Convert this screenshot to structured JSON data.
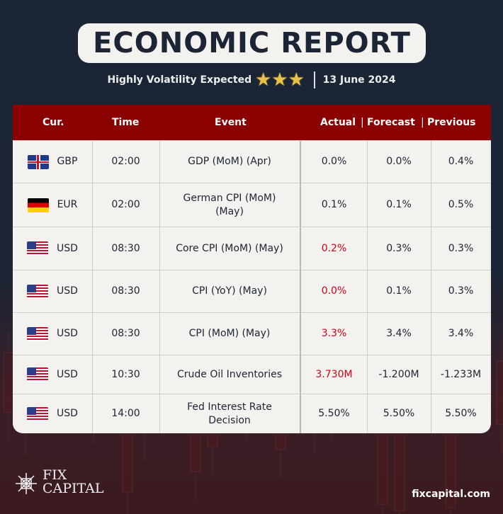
{
  "header": {
    "title": "ECONOMIC REPORT",
    "subtitle": "Highly Volatility Expected",
    "stars": 3,
    "date": "13 June 2024"
  },
  "columns": {
    "cur": "Cur.",
    "time": "Time",
    "event": "Event",
    "actual": "Actual",
    "forecast": "Forecast",
    "previous": "Previous"
  },
  "colors": {
    "header_bg": "#8b0000",
    "highlight": "#d0021b",
    "background": "#1b2535"
  },
  "rows": [
    {
      "flag": "gb",
      "cur": "GBP",
      "time": "02:00",
      "event": "GDP (MoM) (Apr)",
      "actual": "0.0%",
      "forecast": "0.0%",
      "previous": "0.4%",
      "actual_red": false
    },
    {
      "flag": "de",
      "cur": "EUR",
      "time": "02:00",
      "event": "German CPI (MoM) (May)",
      "actual": "0.1%",
      "forecast": "0.1%",
      "previous": "0.5%",
      "actual_red": false
    },
    {
      "flag": "us",
      "cur": "USD",
      "time": "08:30",
      "event": "Core CPI (MoM) (May)",
      "actual": "0.2%",
      "forecast": "0.3%",
      "previous": "0.3%",
      "actual_red": true
    },
    {
      "flag": "us",
      "cur": "USD",
      "time": "08:30",
      "event": "CPI (YoY) (May)",
      "actual": "0.0%",
      "forecast": "0.1%",
      "previous": "0.3%",
      "actual_red": true
    },
    {
      "flag": "us",
      "cur": "USD",
      "time": "08:30",
      "event": "CPI (MoM) (May)",
      "actual": "3.3%",
      "forecast": "3.4%",
      "previous": "3.4%",
      "actual_red": true
    },
    {
      "flag": "us",
      "cur": "USD",
      "time": "10:30",
      "event": "Crude Oil Inventories",
      "actual": "3.730M",
      "forecast": "-1.200M",
      "previous": "-1.233M",
      "actual_red": true
    },
    {
      "flag": "us",
      "cur": "USD",
      "time": "14:00",
      "event": "Fed Interest Rate Decision",
      "actual": "5.50%",
      "forecast": "5.50%",
      "previous": "5.50%",
      "actual_red": false
    }
  ],
  "footer": {
    "logo_line1": "FIX",
    "logo_line2": "CAPITAL",
    "url": "fixcapital.com"
  }
}
